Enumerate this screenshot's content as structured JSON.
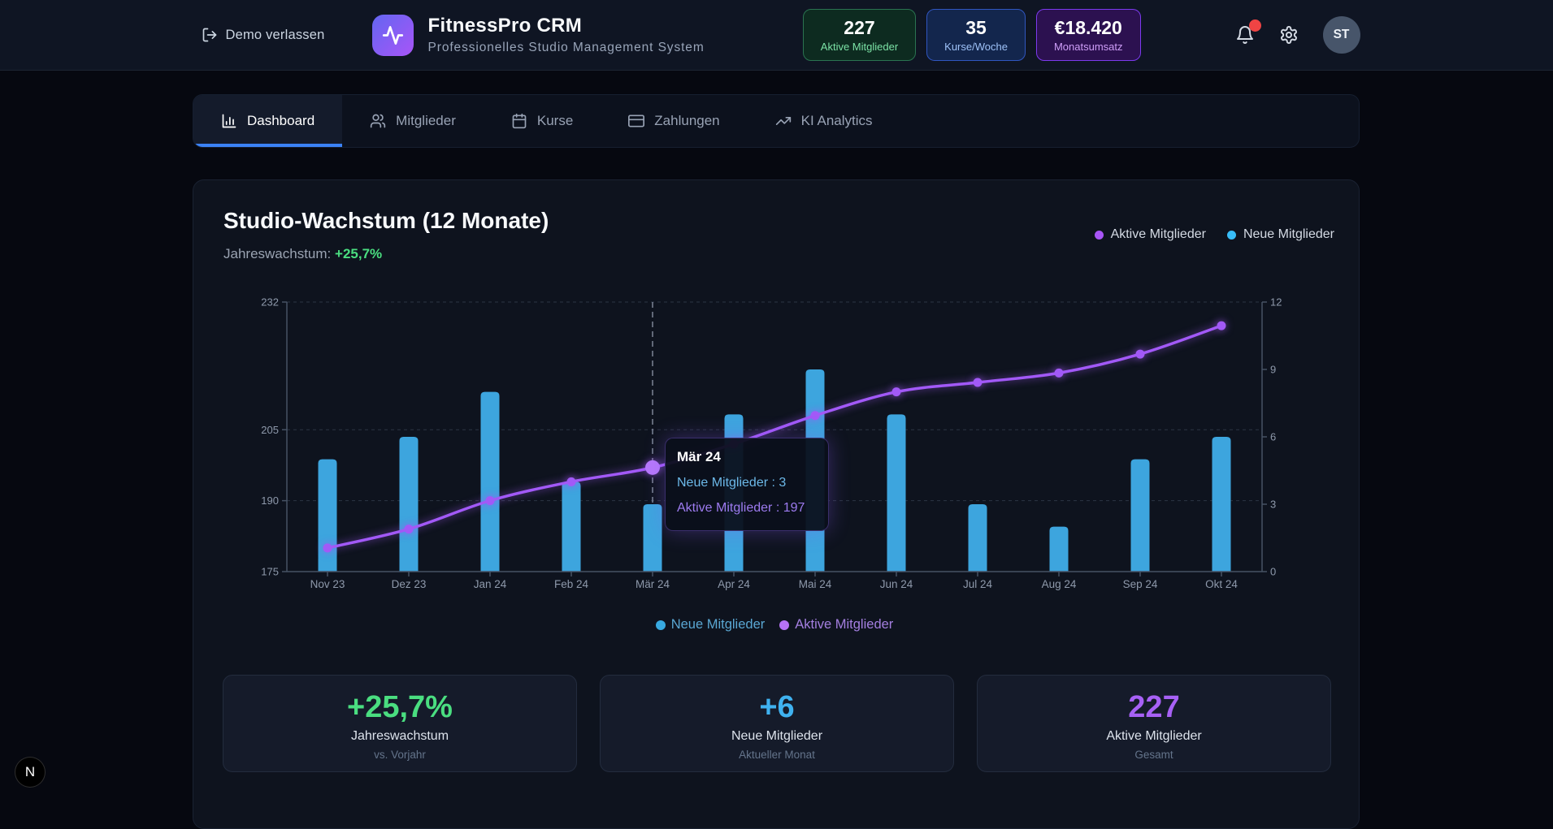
{
  "header": {
    "leave_demo": "Demo verlassen",
    "app_title": "FitnessPro CRM",
    "app_subtitle": "Professionelles Studio Management System",
    "stats": [
      {
        "value": "227",
        "label": "Aktive Mitglieder"
      },
      {
        "value": "35",
        "label": "Kurse/Woche"
      },
      {
        "value": "€18.420",
        "label": "Monatsumsatz"
      }
    ],
    "avatar_initials": "ST"
  },
  "tabs": [
    {
      "label": "Dashboard"
    },
    {
      "label": "Mitglieder"
    },
    {
      "label": "Kurse"
    },
    {
      "label": "Zahlungen"
    },
    {
      "label": "KI Analytics"
    }
  ],
  "growth_card": {
    "title": "Studio-Wachstum (12 Monate)",
    "subtitle_label": "Jahreswachstum:",
    "subtitle_value": "+25,7%",
    "legend_top": [
      {
        "label": "Aktive Mitglieder",
        "color": "#a855f7"
      },
      {
        "label": "Neue Mitglieder",
        "color": "#38bdf8"
      }
    ],
    "legend_bottom": [
      {
        "label": "Neue Mitglieder",
        "color": "#38a9e0",
        "text_color": "#5aa7d3"
      },
      {
        "label": "Aktive Mitglieder",
        "color": "#b672f5",
        "text_color": "#a47fe0"
      }
    ]
  },
  "chart_data": {
    "type": "bar+line",
    "categories": [
      "Nov 23",
      "Dez 23",
      "Jan 24",
      "Feb 24",
      "Mär 24",
      "Apr 24",
      "Mai 24",
      "Jun 24",
      "Jul 24",
      "Aug 24",
      "Sep 24",
      "Okt 24"
    ],
    "series": [
      {
        "name": "Neue Mitglieder",
        "type": "bar",
        "axis": "right",
        "color": "#3da5de",
        "values": [
          5,
          6,
          8,
          4,
          3,
          7,
          9,
          7,
          3,
          2,
          5,
          6
        ]
      },
      {
        "name": "Aktive Mitglieder",
        "type": "line",
        "axis": "left",
        "color": "#a259f7",
        "values": [
          180,
          184,
          190,
          194,
          197,
          202,
          208,
          213,
          215,
          217,
          221,
          227
        ]
      }
    ],
    "left_axis": {
      "min": 175,
      "max": 232,
      "ticks": [
        175,
        190,
        205,
        232
      ]
    },
    "right_axis": {
      "min": 0,
      "max": 12,
      "ticks": [
        0,
        3,
        6,
        9,
        12
      ]
    },
    "grid": "dashed-horizontal",
    "tooltip": {
      "index": 4,
      "title": "Mär 24",
      "lines": [
        {
          "text": "Neue Mitglieder : 3",
          "color": "#6cb8e8"
        },
        {
          "text": "Aktive Mitglieder : 197",
          "color": "#9d7bf0"
        }
      ]
    }
  },
  "summary_cards": [
    {
      "value": "+25,7%",
      "label": "Jahreswachstum",
      "sublabel": "vs. Vorjahr",
      "color": "#4ade80"
    },
    {
      "value": "+6",
      "label": "Neue Mitglieder",
      "sublabel": "Aktueller Monat",
      "color": "#3fb2f0"
    },
    {
      "value": "227",
      "label": "Aktive Mitglieder",
      "sublabel": "Gesamt",
      "color": "#a761f5"
    }
  ],
  "dev_badge": "N"
}
